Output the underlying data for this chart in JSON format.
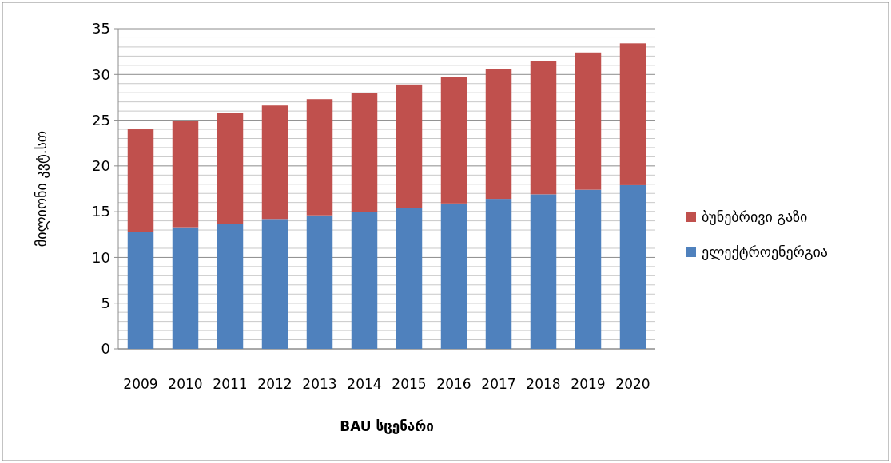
{
  "chart_data": {
    "type": "bar",
    "stacked": true,
    "xlabel": "BAU სცენარი",
    "ylabel": "მილიონი კვტ.სთ",
    "categories": [
      "2009",
      "2010",
      "2011",
      "2012",
      "2013",
      "2014",
      "2015",
      "2016",
      "2017",
      "2018",
      "2019",
      "2020"
    ],
    "series": [
      {
        "name": "ელექტროენერგია",
        "color": "#4f81bd",
        "values": [
          12.8,
          13.3,
          13.7,
          14.2,
          14.6,
          15.0,
          15.4,
          15.9,
          16.4,
          16.9,
          17.4,
          17.9
        ]
      },
      {
        "name": "ბუნებრივი გაზი",
        "color": "#c0504d",
        "values": [
          11.2,
          11.6,
          12.1,
          12.4,
          12.7,
          13.0,
          13.5,
          13.8,
          14.2,
          14.6,
          15.0,
          15.5
        ]
      }
    ],
    "ylim": [
      0,
      35
    ],
    "yticks": [
      0,
      5,
      10,
      15,
      20,
      25,
      30,
      35
    ],
    "grid": true,
    "legend": "right"
  }
}
